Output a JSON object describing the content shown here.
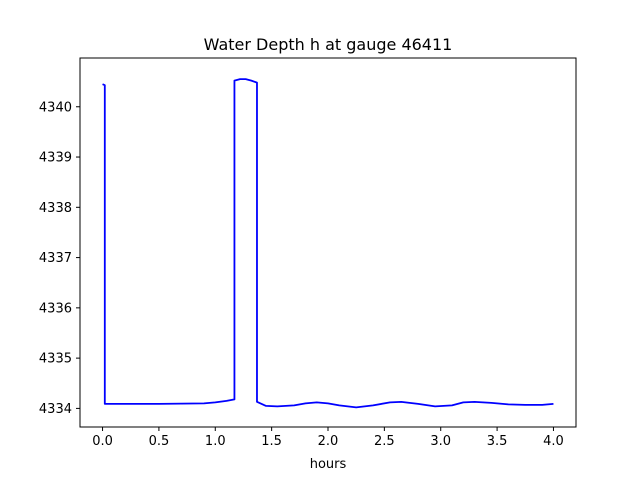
{
  "chart_data": {
    "type": "line",
    "title": "Water Depth h at gauge 46411",
    "xlabel": "hours",
    "ylabel": "",
    "xlim": [
      -0.2,
      4.2
    ],
    "ylim": [
      4333.63,
      4340.97
    ],
    "xticks": [
      0.0,
      0.5,
      1.0,
      1.5,
      2.0,
      2.5,
      3.0,
      3.5,
      4.0
    ],
    "xtick_labels": [
      "0.0",
      "0.5",
      "1.0",
      "1.5",
      "2.0",
      "2.5",
      "3.0",
      "3.5",
      "4.0"
    ],
    "yticks": [
      4334,
      4335,
      4336,
      4337,
      4338,
      4339,
      4340
    ],
    "ytick_labels": [
      "4334",
      "4335",
      "4336",
      "4337",
      "4338",
      "4339",
      "4340"
    ],
    "grid": false,
    "series": [
      {
        "color": "#0000ff",
        "x": [
          0.0,
          0.02,
          0.02,
          0.1,
          0.3,
          0.5,
          0.7,
          0.9,
          1.0,
          1.1,
          1.17,
          1.17,
          1.22,
          1.27,
          1.32,
          1.37,
          1.37,
          1.45,
          1.55,
          1.7,
          1.8,
          1.9,
          2.0,
          2.1,
          2.25,
          2.4,
          2.55,
          2.65,
          2.8,
          2.95,
          3.1,
          3.2,
          3.3,
          3.45,
          3.6,
          3.75,
          3.9,
          4.0
        ],
        "y": [
          4340.45,
          4340.43,
          4334.09,
          4334.09,
          4334.09,
          4334.09,
          4334.095,
          4334.1,
          4334.12,
          4334.15,
          4334.18,
          4340.52,
          4340.55,
          4340.55,
          4340.52,
          4340.48,
          4334.13,
          4334.05,
          4334.04,
          4334.06,
          4334.1,
          4334.12,
          4334.1,
          4334.06,
          4334.02,
          4334.06,
          4334.12,
          4334.13,
          4334.09,
          4334.04,
          4334.06,
          4334.12,
          4334.13,
          4334.11,
          4334.08,
          4334.07,
          4334.07,
          4334.09
        ]
      }
    ]
  }
}
